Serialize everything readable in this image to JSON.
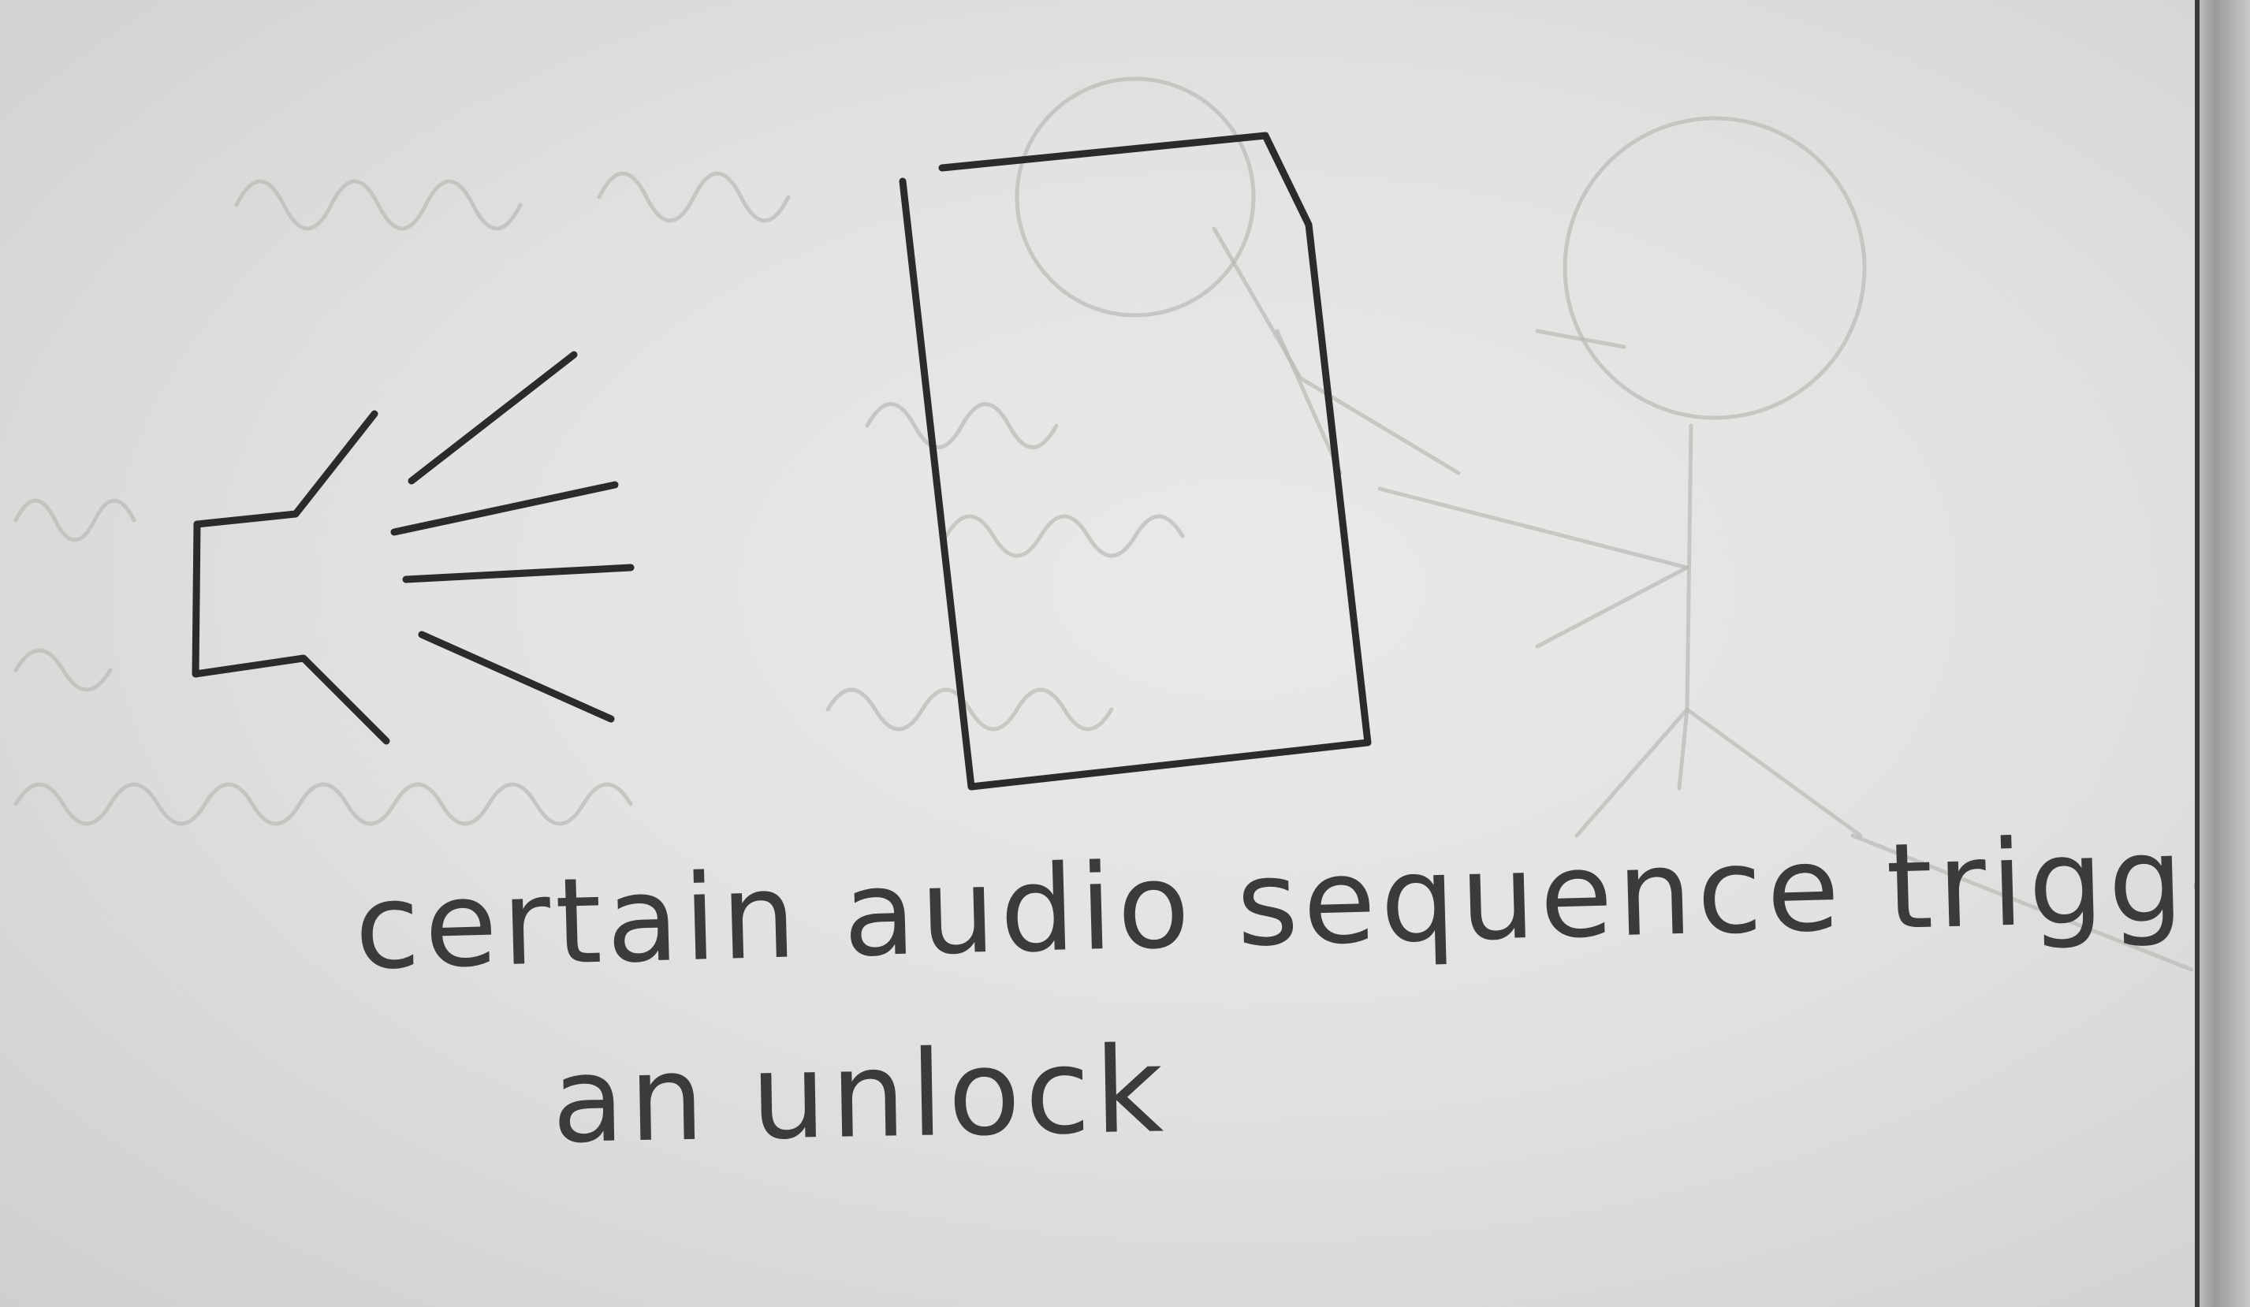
{
  "caption": {
    "line1": "certain audio sequence triggers",
    "line2": "an unlock"
  },
  "drawing": {
    "ink_color": "#2b2b2b",
    "ghost_color": "#b9b9b7",
    "paper_color": "#e4e4e2",
    "elements": [
      "speaker-icon",
      "sound-wave-lines",
      "door-rectangle",
      "faint-stick-figure"
    ]
  }
}
